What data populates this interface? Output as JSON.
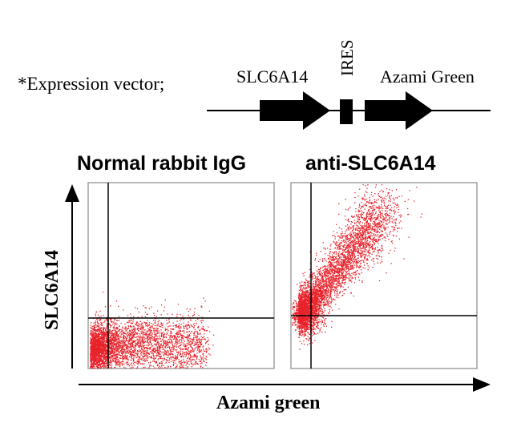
{
  "vector": {
    "label": "*Expression vector;",
    "elements": [
      "SLC6A14",
      "IRES",
      "Azami Green"
    ]
  },
  "panels": [
    {
      "title": "Normal rabbit IgG",
      "population": "lower-left, spreading right"
    },
    {
      "title": "anti-SLC6A14",
      "population": "diagonal, lower-left to upper-right"
    }
  ],
  "axes": {
    "x_label": "Azami green",
    "y_label": "SLC6A14"
  },
  "colors": {
    "dots": "#e8222a",
    "lines": "#000000"
  }
}
